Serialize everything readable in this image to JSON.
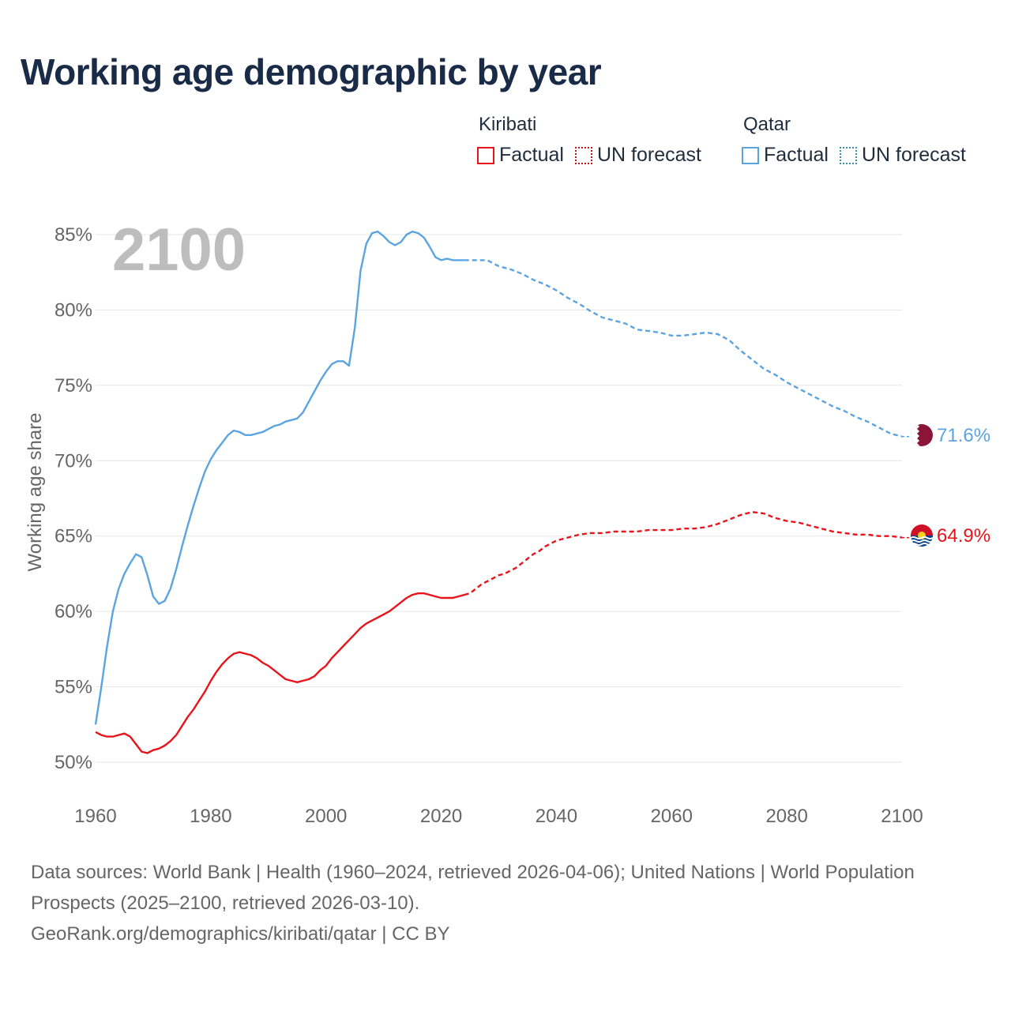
{
  "title": "Working age demographic by year",
  "legend": {
    "groups": [
      {
        "country": "Kiribati",
        "factual": "Factual",
        "forecast": "UN forecast",
        "color": "#e8141b",
        "forecast_color": "#c1121a"
      },
      {
        "country": "Qatar",
        "factual": "Factual",
        "forecast": "UN forecast",
        "color": "#5ba4e0",
        "forecast_color": "#3a8fa6"
      }
    ]
  },
  "year_label": "2100",
  "footer": {
    "line1": "Data sources: World Bank | Health (1960–2024, retrieved 2026-04-06); United Nations | World Population Prospects (2025–2100, retrieved 2026-03-10).",
    "line2": "GeoRank.org/demographics/kiribati/qatar | CC BY"
  },
  "chart_data": {
    "type": "line",
    "ylabel": "Working age share",
    "xlabel": "",
    "xlim": [
      1960,
      2100
    ],
    "ylim": [
      49,
      86
    ],
    "x_ticks": [
      1960,
      1980,
      2000,
      2020,
      2040,
      2060,
      2080,
      2100
    ],
    "y_ticks": [
      50,
      55,
      60,
      65,
      70,
      75,
      80,
      85
    ],
    "y_tick_labels": [
      "50%",
      "55%",
      "60%",
      "65%",
      "70%",
      "75%",
      "80%",
      "85%"
    ],
    "x_tick_labels": [
      "1960",
      "1980",
      "2000",
      "2020",
      "2040",
      "2060",
      "2080",
      "2100"
    ],
    "forecast_start": 2024,
    "series": [
      {
        "name": "Kiribati",
        "color": "#e8141b",
        "flag": "kiribati-flag",
        "end_label": "64.9%",
        "points": [
          [
            1960,
            52.0
          ],
          [
            1961,
            51.8
          ],
          [
            1962,
            51.7
          ],
          [
            1963,
            51.7
          ],
          [
            1964,
            51.8
          ],
          [
            1965,
            51.9
          ],
          [
            1966,
            51.7
          ],
          [
            1967,
            51.2
          ],
          [
            1968,
            50.7
          ],
          [
            1969,
            50.6
          ],
          [
            1970,
            50.8
          ],
          [
            1971,
            50.9
          ],
          [
            1972,
            51.1
          ],
          [
            1973,
            51.4
          ],
          [
            1974,
            51.8
          ],
          [
            1975,
            52.4
          ],
          [
            1976,
            53.0
          ],
          [
            1977,
            53.5
          ],
          [
            1978,
            54.1
          ],
          [
            1979,
            54.7
          ],
          [
            1980,
            55.4
          ],
          [
            1981,
            56.0
          ],
          [
            1982,
            56.5
          ],
          [
            1983,
            56.9
          ],
          [
            1984,
            57.2
          ],
          [
            1985,
            57.3
          ],
          [
            1986,
            57.2
          ],
          [
            1987,
            57.1
          ],
          [
            1988,
            56.9
          ],
          [
            1989,
            56.6
          ],
          [
            1990,
            56.4
          ],
          [
            1991,
            56.1
          ],
          [
            1992,
            55.8
          ],
          [
            1993,
            55.5
          ],
          [
            1994,
            55.4
          ],
          [
            1995,
            55.3
          ],
          [
            1996,
            55.4
          ],
          [
            1997,
            55.5
          ],
          [
            1998,
            55.7
          ],
          [
            1999,
            56.1
          ],
          [
            2000,
            56.4
          ],
          [
            2001,
            56.9
          ],
          [
            2002,
            57.3
          ],
          [
            2003,
            57.7
          ],
          [
            2004,
            58.1
          ],
          [
            2005,
            58.5
          ],
          [
            2006,
            58.9
          ],
          [
            2007,
            59.2
          ],
          [
            2008,
            59.4
          ],
          [
            2009,
            59.6
          ],
          [
            2010,
            59.8
          ],
          [
            2011,
            60.0
          ],
          [
            2012,
            60.3
          ],
          [
            2013,
            60.6
          ],
          [
            2014,
            60.9
          ],
          [
            2015,
            61.1
          ],
          [
            2016,
            61.2
          ],
          [
            2017,
            61.2
          ],
          [
            2018,
            61.1
          ],
          [
            2019,
            61.0
          ],
          [
            2020,
            60.9
          ],
          [
            2021,
            60.9
          ],
          [
            2022,
            60.9
          ],
          [
            2023,
            61.0
          ],
          [
            2024,
            61.1
          ],
          [
            2025,
            61.2
          ],
          [
            2026,
            61.5
          ],
          [
            2027,
            61.8
          ],
          [
            2028,
            62.0
          ],
          [
            2029,
            62.2
          ],
          [
            2030,
            62.4
          ],
          [
            2031,
            62.5
          ],
          [
            2032,
            62.7
          ],
          [
            2033,
            62.9
          ],
          [
            2034,
            63.2
          ],
          [
            2035,
            63.5
          ],
          [
            2036,
            63.8
          ],
          [
            2037,
            64.0
          ],
          [
            2038,
            64.3
          ],
          [
            2039,
            64.5
          ],
          [
            2040,
            64.7
          ],
          [
            2041,
            64.8
          ],
          [
            2042,
            64.9
          ],
          [
            2043,
            65.0
          ],
          [
            2044,
            65.1
          ],
          [
            2046,
            65.2
          ],
          [
            2048,
            65.2
          ],
          [
            2050,
            65.3
          ],
          [
            2052,
            65.3
          ],
          [
            2054,
            65.3
          ],
          [
            2056,
            65.4
          ],
          [
            2058,
            65.4
          ],
          [
            2060,
            65.4
          ],
          [
            2062,
            65.5
          ],
          [
            2064,
            65.5
          ],
          [
            2066,
            65.6
          ],
          [
            2068,
            65.8
          ],
          [
            2070,
            66.1
          ],
          [
            2072,
            66.4
          ],
          [
            2074,
            66.6
          ],
          [
            2076,
            66.5
          ],
          [
            2078,
            66.2
          ],
          [
            2080,
            66.0
          ],
          [
            2082,
            65.9
          ],
          [
            2084,
            65.7
          ],
          [
            2086,
            65.5
          ],
          [
            2088,
            65.3
          ],
          [
            2090,
            65.2
          ],
          [
            2092,
            65.1
          ],
          [
            2094,
            65.1
          ],
          [
            2096,
            65.0
          ],
          [
            2098,
            65.0
          ],
          [
            2100,
            64.9
          ]
        ]
      },
      {
        "name": "Qatar",
        "color": "#5ba4e0",
        "flag": "qatar-flag",
        "end_label": "71.6%",
        "points": [
          [
            1960,
            52.5
          ],
          [
            1961,
            55.0
          ],
          [
            1962,
            57.7
          ],
          [
            1963,
            60.0
          ],
          [
            1964,
            61.5
          ],
          [
            1965,
            62.5
          ],
          [
            1966,
            63.2
          ],
          [
            1967,
            63.8
          ],
          [
            1968,
            63.6
          ],
          [
            1969,
            62.4
          ],
          [
            1970,
            61.0
          ],
          [
            1971,
            60.5
          ],
          [
            1972,
            60.7
          ],
          [
            1973,
            61.5
          ],
          [
            1974,
            62.8
          ],
          [
            1975,
            64.3
          ],
          [
            1976,
            65.7
          ],
          [
            1977,
            67.0
          ],
          [
            1978,
            68.2
          ],
          [
            1979,
            69.3
          ],
          [
            1980,
            70.1
          ],
          [
            1981,
            70.7
          ],
          [
            1982,
            71.2
          ],
          [
            1983,
            71.7
          ],
          [
            1984,
            72.0
          ],
          [
            1985,
            71.9
          ],
          [
            1986,
            71.7
          ],
          [
            1987,
            71.7
          ],
          [
            1988,
            71.8
          ],
          [
            1989,
            71.9
          ],
          [
            1990,
            72.1
          ],
          [
            1991,
            72.3
          ],
          [
            1992,
            72.4
          ],
          [
            1993,
            72.6
          ],
          [
            1994,
            72.7
          ],
          [
            1995,
            72.8
          ],
          [
            1996,
            73.2
          ],
          [
            1997,
            73.9
          ],
          [
            1998,
            74.6
          ],
          [
            1999,
            75.3
          ],
          [
            2000,
            75.9
          ],
          [
            2001,
            76.4
          ],
          [
            2002,
            76.6
          ],
          [
            2003,
            76.6
          ],
          [
            2004,
            76.3
          ],
          [
            2005,
            78.8
          ],
          [
            2006,
            82.6
          ],
          [
            2007,
            84.4
          ],
          [
            2008,
            85.1
          ],
          [
            2009,
            85.2
          ],
          [
            2010,
            84.9
          ],
          [
            2011,
            84.5
          ],
          [
            2012,
            84.3
          ],
          [
            2013,
            84.5
          ],
          [
            2014,
            85.0
          ],
          [
            2015,
            85.2
          ],
          [
            2016,
            85.1
          ],
          [
            2017,
            84.8
          ],
          [
            2018,
            84.2
          ],
          [
            2019,
            83.5
          ],
          [
            2020,
            83.3
          ],
          [
            2021,
            83.4
          ],
          [
            2022,
            83.3
          ],
          [
            2023,
            83.3
          ],
          [
            2024,
            83.3
          ],
          [
            2026,
            83.3
          ],
          [
            2028,
            83.3
          ],
          [
            2030,
            82.9
          ],
          [
            2032,
            82.7
          ],
          [
            2034,
            82.4
          ],
          [
            2036,
            82.0
          ],
          [
            2038,
            81.7
          ],
          [
            2040,
            81.3
          ],
          [
            2042,
            80.8
          ],
          [
            2044,
            80.4
          ],
          [
            2046,
            79.9
          ],
          [
            2048,
            79.5
          ],
          [
            2050,
            79.3
          ],
          [
            2052,
            79.1
          ],
          [
            2054,
            78.7
          ],
          [
            2056,
            78.6
          ],
          [
            2058,
            78.5
          ],
          [
            2060,
            78.3
          ],
          [
            2062,
            78.3
          ],
          [
            2064,
            78.4
          ],
          [
            2066,
            78.5
          ],
          [
            2068,
            78.4
          ],
          [
            2070,
            78.0
          ],
          [
            2072,
            77.3
          ],
          [
            2074,
            76.7
          ],
          [
            2076,
            76.1
          ],
          [
            2078,
            75.7
          ],
          [
            2080,
            75.2
          ],
          [
            2082,
            74.8
          ],
          [
            2084,
            74.4
          ],
          [
            2086,
            74.0
          ],
          [
            2088,
            73.6
          ],
          [
            2090,
            73.3
          ],
          [
            2092,
            72.9
          ],
          [
            2094,
            72.6
          ],
          [
            2096,
            72.2
          ],
          [
            2098,
            71.8
          ],
          [
            2100,
            71.6
          ]
        ]
      }
    ]
  }
}
